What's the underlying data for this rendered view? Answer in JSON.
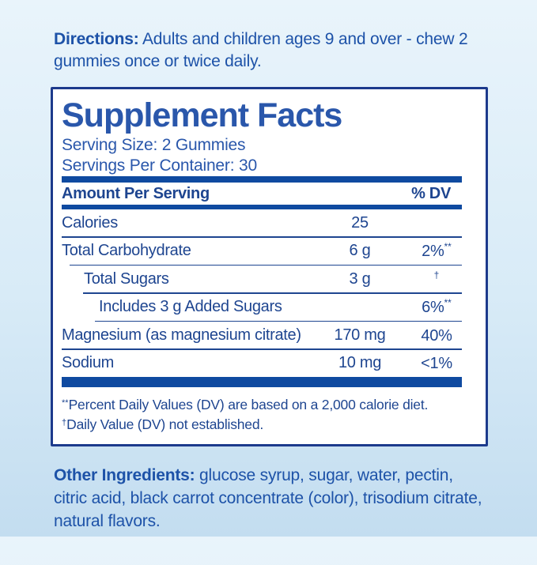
{
  "colors": {
    "background_top": "#e9f4fb",
    "background_bottom": "#c3ddf0",
    "panel_background": "#ffffff",
    "panel_border": "#1c3a8c",
    "title_blue": "#2a57ab",
    "text_navy": "#1e4590",
    "bar_blue": "#0f4aa0"
  },
  "directions": {
    "label": "Directions:",
    "text": " Adults and children ages 9 and over - chew 2 gummies once or twice daily."
  },
  "panel": {
    "title": "Supplement Facts",
    "serving_size": "Serving Size: 2 Gummies",
    "servings_per_container": "Servings Per Container: 30",
    "table": {
      "header": {
        "amount_label": "Amount Per Serving",
        "dv_label": "% DV"
      },
      "rows": [
        {
          "name": "Calories",
          "amount": "25",
          "dv": "",
          "dv_sup": ""
        },
        {
          "name": "Total Carbohydrate",
          "amount": "6 g",
          "dv": "2%",
          "dv_sup": "**"
        },
        {
          "name": "Total Sugars",
          "amount": "3 g",
          "dv": "",
          "dv_sup": "†"
        },
        {
          "name": "Includes 3 g Added Sugars",
          "amount": "",
          "dv": "6%",
          "dv_sup": "**"
        },
        {
          "name": "Magnesium (as magnesium citrate)",
          "amount": "170 mg",
          "dv": "40%",
          "dv_sup": ""
        },
        {
          "name": "Sodium",
          "amount": "10 mg",
          "dv": "<1%",
          "dv_sup": ""
        }
      ]
    },
    "footnotes": [
      {
        "sup": "**",
        "text": "Percent Daily Values (DV) are based on a 2,000 calorie diet."
      },
      {
        "sup": "†",
        "text": "Daily Value (DV) not established."
      }
    ]
  },
  "other_ingredients": {
    "label": "Other Ingredients:",
    "text": " glucose syrup, sugar, water, pectin, citric acid, black carrot concentrate (color), trisodium citrate, natural flavors."
  }
}
